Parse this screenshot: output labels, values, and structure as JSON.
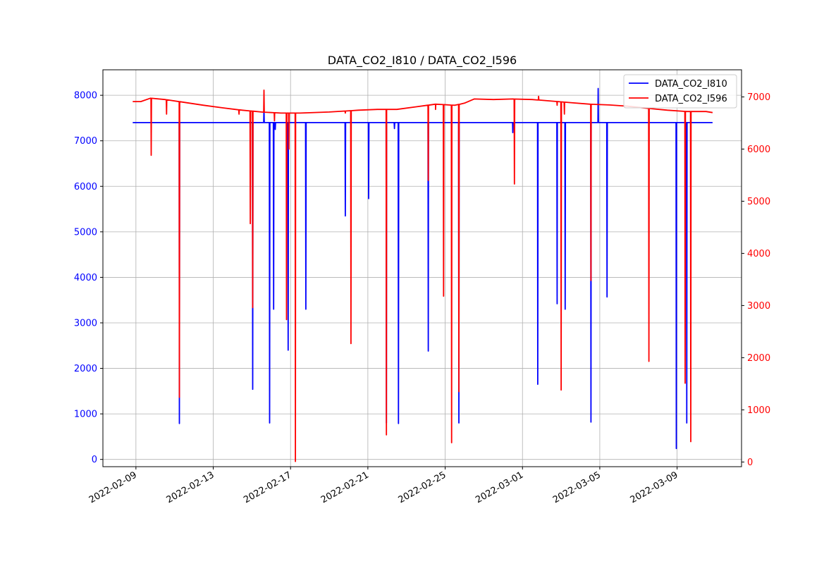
{
  "chart_data": {
    "type": "line",
    "title": "DATA_CO2_I810 / DATA_CO2_I596",
    "xlabel": "",
    "ylabel": "",
    "grid": true,
    "legend_position": "top-right",
    "x_ticks": [
      "2022-02-09",
      "2022-02-13",
      "2022-02-17",
      "2022-02-21",
      "2022-02-25",
      "2022-03-01",
      "2022-03-05",
      "2022-03-09"
    ],
    "y_left_ticks": [
      0,
      1000,
      2000,
      3000,
      4000,
      5000,
      6000,
      7000,
      8000
    ],
    "y_right_ticks": [
      0,
      1000,
      2000,
      3000,
      4000,
      5000,
      6000,
      7000
    ],
    "xlim": [
      "2022-02-07T07:00",
      "2022-03-12T08:00"
    ],
    "ylim_left": [
      -160,
      8560
    ],
    "ylim_right": [
      -90,
      7520
    ],
    "series": [
      {
        "name": "DATA_CO2_I810",
        "axis": "left",
        "color": "#0000ff",
        "baseline": 7400,
        "start": "2022-02-08T20:00",
        "end": "2022-03-10T20:00",
        "spikes": [
          {
            "t": "2022-02-11T06:00",
            "min": 790
          },
          {
            "t": "2022-02-15T01:00",
            "min": 1540
          },
          {
            "t": "2022-02-15T22:00",
            "min": 800
          },
          {
            "t": "2022-02-16T03:00",
            "min": 3300
          },
          {
            "t": "2022-02-16T05:00",
            "min": 7250
          },
          {
            "t": "2022-02-16T21:00",
            "min": 2400
          },
          {
            "t": "2022-02-17T19:00",
            "min": 3300
          },
          {
            "t": "2022-02-19T20:00",
            "min": 5350
          },
          {
            "t": "2022-02-21T01:00",
            "min": 5730
          },
          {
            "t": "2022-02-21T23:00",
            "min": 800
          },
          {
            "t": "2022-02-22T09:00",
            "min": 7270
          },
          {
            "t": "2022-02-22T14:00",
            "min": 790
          },
          {
            "t": "2022-02-24T03:00",
            "min": 2380
          },
          {
            "t": "2022-02-25T17:00",
            "min": 800
          },
          {
            "t": "2022-02-28T12:00",
            "min": 7180
          },
          {
            "t": "2022-03-01T19:00",
            "min": 1650
          },
          {
            "t": "2022-03-02T19:00",
            "min": 3420
          },
          {
            "t": "2022-03-03T05:00",
            "min": 3300
          },
          {
            "t": "2022-03-04T13:00",
            "min": 820
          },
          {
            "t": "2022-03-05T09:00",
            "min": 3570
          },
          {
            "t": "2022-03-08T23:00",
            "min": 240
          },
          {
            "t": "2022-03-09T12:00",
            "min": 800
          }
        ],
        "peaks": [
          {
            "t": "2022-03-04T22:00",
            "max": 8150
          },
          {
            "t": "2022-02-15T15:00",
            "max": 7700
          }
        ]
      },
      {
        "name": "DATA_CO2_I596",
        "axis": "right",
        "color": "#ff0000",
        "baseline_trend": [
          {
            "t": "2022-02-08T20:00",
            "v": 6910
          },
          {
            "t": "2022-02-09T06:00",
            "v": 6910
          },
          {
            "t": "2022-02-09T18:00",
            "v": 6975
          },
          {
            "t": "2022-02-10T12:00",
            "v": 6950
          },
          {
            "t": "2022-02-11T12:00",
            "v": 6895
          },
          {
            "t": "2022-02-12T12:00",
            "v": 6840
          },
          {
            "t": "2022-02-13T12:00",
            "v": 6790
          },
          {
            "t": "2022-02-14T12:00",
            "v": 6745
          },
          {
            "t": "2022-02-15T12:00",
            "v": 6710
          },
          {
            "t": "2022-02-16T12:00",
            "v": 6690
          },
          {
            "t": "2022-02-17T12:00",
            "v": 6690
          },
          {
            "t": "2022-02-19T00:00",
            "v": 6710
          },
          {
            "t": "2022-02-20T12:00",
            "v": 6745
          },
          {
            "t": "2022-02-21T12:00",
            "v": 6760
          },
          {
            "t": "2022-02-22T12:00",
            "v": 6760
          },
          {
            "t": "2022-02-23T12:00",
            "v": 6810
          },
          {
            "t": "2022-02-24T12:00",
            "v": 6860
          },
          {
            "t": "2022-02-25T12:00",
            "v": 6840
          },
          {
            "t": "2022-02-26T00:00",
            "v": 6880
          },
          {
            "t": "2022-02-26T12:00",
            "v": 6960
          },
          {
            "t": "2022-02-27T12:00",
            "v": 6950
          },
          {
            "t": "2022-02-28T12:00",
            "v": 6960
          },
          {
            "t": "2022-03-01T12:00",
            "v": 6950
          },
          {
            "t": "2022-03-02T12:00",
            "v": 6920
          },
          {
            "t": "2022-03-03T12:00",
            "v": 6890
          },
          {
            "t": "2022-03-04T12:00",
            "v": 6860
          },
          {
            "t": "2022-03-05T12:00",
            "v": 6845
          },
          {
            "t": "2022-03-06T12:00",
            "v": 6820
          },
          {
            "t": "2022-03-07T12:00",
            "v": 6780
          },
          {
            "t": "2022-03-08T12:00",
            "v": 6745
          },
          {
            "t": "2022-03-09T12:00",
            "v": 6720
          },
          {
            "t": "2022-03-10T12:00",
            "v": 6720
          },
          {
            "t": "2022-03-10T20:00",
            "v": 6700
          }
        ],
        "spikes": [
          {
            "t": "2022-02-09T19:00",
            "min": 5880
          },
          {
            "t": "2022-02-10T14:00",
            "min": 6670
          },
          {
            "t": "2022-02-11T06:00",
            "min": 1240
          },
          {
            "t": "2022-02-14T08:00",
            "min": 6670
          },
          {
            "t": "2022-02-14T22:00",
            "min": 4570
          },
          {
            "t": "2022-02-15T01:00",
            "min": 2960
          },
          {
            "t": "2022-02-16T04:00",
            "min": 6540
          },
          {
            "t": "2022-02-16T19:00",
            "min": 2730
          },
          {
            "t": "2022-02-16T22:00",
            "min": 6000
          },
          {
            "t": "2022-02-17T06:00",
            "min": 10
          },
          {
            "t": "2022-02-19T20:00",
            "min": 6690
          },
          {
            "t": "2022-02-20T03:00",
            "min": 2270
          },
          {
            "t": "2022-02-21T23:00",
            "min": 520
          },
          {
            "t": "2022-02-24T03:00",
            "min": 5400
          },
          {
            "t": "2022-02-24T12:00",
            "min": 6760
          },
          {
            "t": "2022-02-24T22:00",
            "min": 3180
          },
          {
            "t": "2022-02-25T08:00",
            "min": 370
          },
          {
            "t": "2022-02-25T17:00",
            "min": 1350
          },
          {
            "t": "2022-02-28T14:00",
            "min": 5330
          },
          {
            "t": "2022-03-02T19:00",
            "min": 6840
          },
          {
            "t": "2022-03-03T00:00",
            "min": 1380
          },
          {
            "t": "2022-03-03T04:00",
            "min": 6670
          },
          {
            "t": "2022-03-04T13:00",
            "min": 3480
          },
          {
            "t": "2022-03-07T13:00",
            "min": 1930
          },
          {
            "t": "2022-03-09T10:00",
            "min": 1510
          },
          {
            "t": "2022-03-09T17:00",
            "min": 390
          }
        ],
        "peaks": [
          {
            "t": "2022-02-15T15:00",
            "max": 7130
          },
          {
            "t": "2022-03-01T20:00",
            "max": 7010
          }
        ]
      }
    ]
  }
}
